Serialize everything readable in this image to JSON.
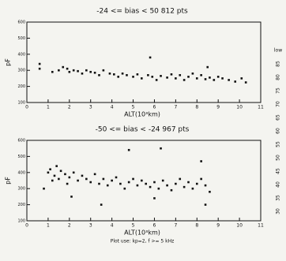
{
  "chart_data": [
    {
      "type": "scatter",
      "title": "-24 <= bias < 50   812 pts",
      "x_label": "ALT(10³km)",
      "y_label": "pF",
      "color": "#111111",
      "xlim": [
        0,
        11
      ],
      "xticks": [
        0,
        1,
        2,
        3,
        4,
        5,
        6,
        7,
        8,
        9,
        10,
        11
      ],
      "ylim": [
        100,
        600
      ],
      "yticks": [
        100,
        200,
        300,
        400,
        500,
        600
      ],
      "series": [
        {
          "x": [
            0.6,
            0.6,
            1.2,
            1.5,
            1.7,
            1.9,
            2.0,
            2.2,
            2.4,
            2.6,
            2.8,
            3.0,
            3.2,
            3.4,
            3.6,
            3.9,
            4.1,
            4.3,
            4.5,
            4.7,
            5.0,
            5.2,
            5.4,
            5.7,
            5.9,
            6.1,
            6.3,
            6.6,
            6.8,
            7.0,
            7.2,
            7.4,
            7.6,
            7.8,
            8.0,
            8.2,
            8.4,
            8.6,
            8.8,
            9.0,
            9.2,
            9.5,
            9.8,
            10.1,
            10.3,
            5.8,
            8.5
          ],
          "values": [
            340,
            310,
            290,
            300,
            320,
            310,
            290,
            300,
            295,
            280,
            300,
            290,
            285,
            270,
            300,
            280,
            275,
            260,
            280,
            270,
            260,
            275,
            250,
            270,
            260,
            240,
            265,
            255,
            275,
            250,
            270,
            240,
            260,
            280,
            250,
            270,
            245,
            255,
            240,
            260,
            250,
            240,
            230,
            250,
            225,
            380,
            320
          ]
        }
      ]
    },
    {
      "type": "scatter",
      "title": "-50 <= bias < -24   967 pts",
      "x_label": "ALT(10³km)",
      "y_label": "pF",
      "color": "#111111",
      "xlim": [
        0,
        11
      ],
      "xticks": [
        0,
        1,
        2,
        3,
        4,
        5,
        6,
        7,
        8,
        9,
        10,
        11
      ],
      "ylim": [
        100,
        600
      ],
      "yticks": [
        100,
        200,
        300,
        400,
        500,
        600
      ],
      "series": [
        {
          "x": [
            0.8,
            1.0,
            1.1,
            1.2,
            1.3,
            1.4,
            1.5,
            1.6,
            1.8,
            1.9,
            2.0,
            2.2,
            2.4,
            2.6,
            2.8,
            3.0,
            3.2,
            3.4,
            3.6,
            3.8,
            4.0,
            4.2,
            4.4,
            4.6,
            4.8,
            5.0,
            5.2,
            5.4,
            5.6,
            5.8,
            6.0,
            6.2,
            6.4,
            6.6,
            6.8,
            7.0,
            7.2,
            7.4,
            7.6,
            7.8,
            8.0,
            8.2,
            8.4,
            8.6,
            4.8,
            6.3,
            8.2,
            6.0,
            3.5,
            8.4,
            2.1
          ],
          "values": [
            300,
            400,
            420,
            350,
            380,
            440,
            360,
            410,
            390,
            330,
            370,
            400,
            350,
            380,
            360,
            340,
            390,
            330,
            360,
            320,
            350,
            370,
            330,
            300,
            340,
            360,
            320,
            350,
            330,
            310,
            340,
            300,
            350,
            320,
            290,
            330,
            360,
            310,
            340,
            300,
            330,
            360,
            320,
            280,
            540,
            550,
            470,
            240,
            200,
            200,
            250
          ]
        }
      ]
    }
  ],
  "footnote": "Plot use: kp=2, f >= 5 kHz",
  "margin_labels": [
    "low",
    "85",
    "80",
    "75",
    "70",
    "65",
    "60",
    "55",
    "50",
    "45",
    "40",
    "35",
    "30"
  ]
}
